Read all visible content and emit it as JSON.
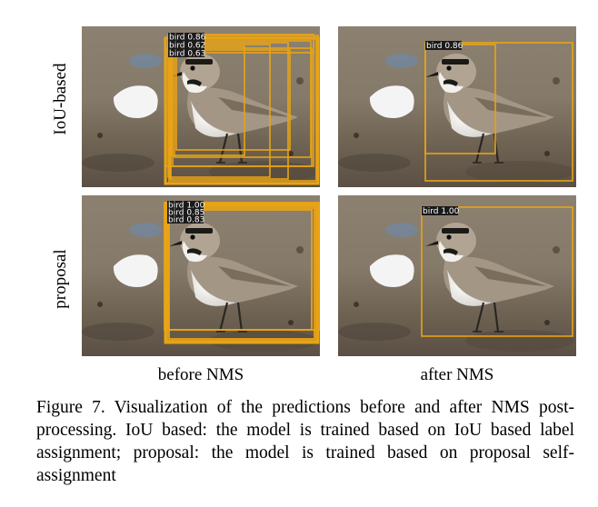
{
  "rows": [
    {
      "label": "IoU-based"
    },
    {
      "label": "proposal"
    }
  ],
  "columns": [
    {
      "label": "before NMS"
    },
    {
      "label": "after NMS"
    }
  ],
  "panels": {
    "iou_before": {
      "detections": [
        "bird 0.86",
        "bird 0.62",
        "bird 0.63"
      ]
    },
    "iou_after": {
      "detections": [
        "bird 0.86"
      ]
    },
    "proposal_before": {
      "detections": [
        "bird 1.00",
        "bird 0.85",
        "bird 0.83"
      ]
    },
    "proposal_after": {
      "detections": [
        "bird 1.00"
      ]
    }
  },
  "colors": {
    "box": "#e8a316",
    "label_bg": "#1a1a1a"
  },
  "caption": {
    "text": "Figure 7.  Visualization of the predictions before and after NMS post-processing.  IoU based: the model is trained based on IoU based label assignment; proposal: the model is trained based on proposal self-assignment"
  }
}
